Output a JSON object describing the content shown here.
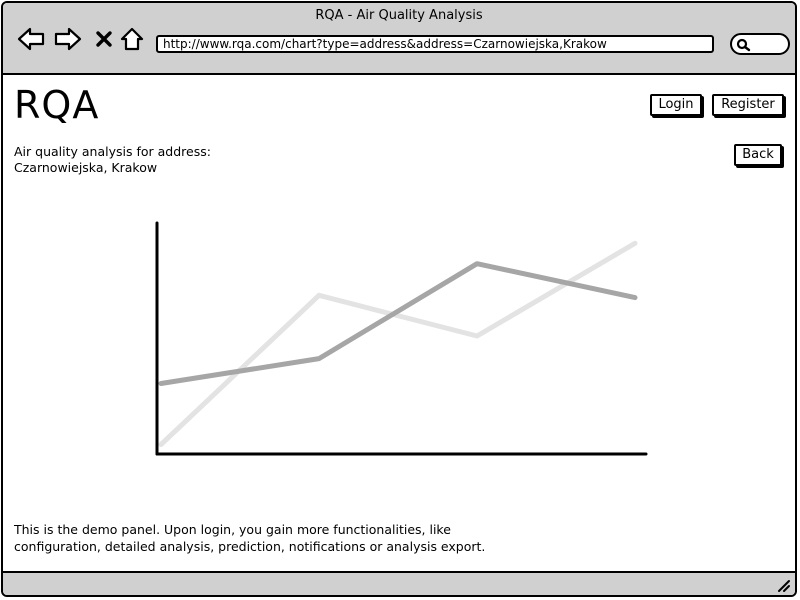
{
  "window": {
    "title": "RQA - Air Quality Analysis"
  },
  "browser": {
    "url": "http://www.rqa.com/chart?type=address&address=Czarnowiejska,Krakow",
    "icons": [
      "back-arrow-icon",
      "forward-arrow-icon",
      "close-x-icon",
      "home-icon",
      "search-icon",
      "resize-grip-icon"
    ]
  },
  "header": {
    "logo": "RQA",
    "login_label": "Login",
    "register_label": "Register"
  },
  "main": {
    "intro_line1": "Air quality analysis for address:",
    "intro_line2": "Czarnowiejska, Krakow",
    "back_label": "Back",
    "footer_line1": "This is the demo panel. Upon login, you gain more functionalities, like",
    "footer_line2": "configuration, detailed analysis, prediction, notifications or analysis export."
  },
  "chart_data": {
    "type": "line",
    "title": "",
    "xlabel": "",
    "ylabel": "",
    "x": [
      0,
      1,
      2,
      3
    ],
    "ylim": [
      0,
      100
    ],
    "grid": false,
    "series": [
      {
        "color": "#e3e3e3",
        "values": [
          2,
          68,
          50,
          91
        ]
      },
      {
        "color": "#a6a6a6",
        "values": [
          29,
          40,
          82,
          67
        ]
      }
    ]
  }
}
